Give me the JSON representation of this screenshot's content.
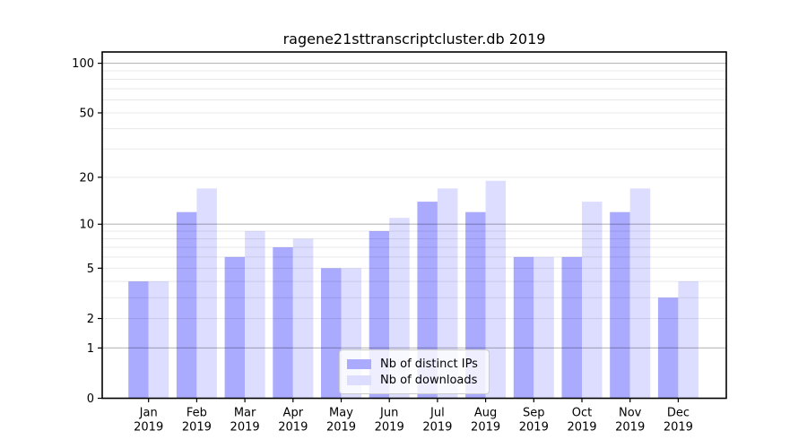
{
  "chart_data": {
    "type": "bar",
    "title": "ragene21sttranscriptcluster.db 2019",
    "categories": [
      "Jan",
      "Feb",
      "Mar",
      "Apr",
      "May",
      "Jun",
      "Jul",
      "Aug",
      "Sep",
      "Oct",
      "Nov",
      "Dec"
    ],
    "category_year_label": "2019",
    "series": [
      {
        "name": "Nb of distinct IPs",
        "color": "#aaaaff",
        "values": [
          4,
          12,
          6,
          7,
          5,
          9,
          14,
          12,
          6,
          6,
          12,
          3
        ]
      },
      {
        "name": "Nb of downloads",
        "color": "#ddddff",
        "values": [
          4,
          17,
          9,
          8,
          5,
          11,
          17,
          19,
          6,
          14,
          17,
          4
        ]
      }
    ],
    "xlabel": "",
    "ylabel": "",
    "yscale": "log1p",
    "ylim": [
      0,
      117
    ],
    "yticks": [
      0,
      1,
      2,
      5,
      10,
      20,
      50,
      100
    ],
    "gridlines_major": [
      1,
      10,
      100
    ],
    "gridlines_minor": [
      2,
      3,
      4,
      5,
      6,
      7,
      8,
      9,
      20,
      30,
      40,
      50,
      60,
      70,
      80,
      90
    ],
    "grid": true,
    "legend_position": "lower center inside",
    "axis_color": "#000000",
    "gridline_major_color": "rgba(0,0,0,0.28)",
    "gridline_minor_color": "rgba(0,0,0,0.09)"
  }
}
